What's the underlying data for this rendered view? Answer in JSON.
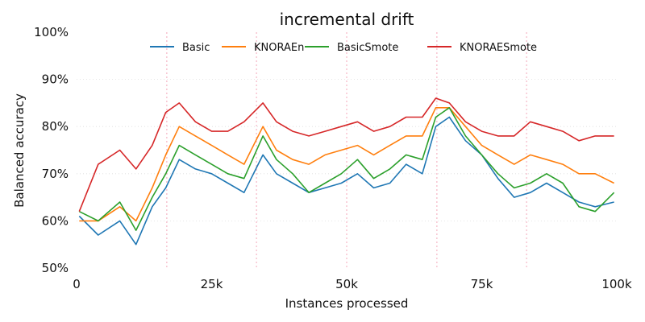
{
  "chart_data": {
    "type": "line",
    "title": "incremental drift",
    "xlabel": "Instances processed",
    "ylabel": "Balanced accuracy",
    "xlim": [
      0,
      100000
    ],
    "ylim": [
      0.5,
      1.0
    ],
    "x_ticks": [
      0,
      25000,
      50000,
      75000,
      100000
    ],
    "x_tick_labels": [
      "0",
      "25k",
      "50k",
      "75k",
      "100k"
    ],
    "y_ticks": [
      0.5,
      0.6,
      0.7,
      0.8,
      0.9,
      1.0
    ],
    "y_tick_labels": [
      "50%",
      "60%",
      "70%",
      "80%",
      "90%",
      "100%"
    ],
    "grid": "horizontal dotted",
    "legend_position": "top-center",
    "drift_markers": [
      16700,
      33300,
      50000,
      66700,
      83300
    ],
    "drift_marker_color": "#f4a7b9",
    "x": [
      500,
      4000,
      8000,
      11000,
      14000,
      16500,
      19000,
      22000,
      25000,
      28000,
      31000,
      34500,
      37000,
      40000,
      43000,
      46000,
      49000,
      52000,
      55000,
      58000,
      61000,
      64000,
      66500,
      69000,
      72000,
      75000,
      78000,
      81000,
      84000,
      87000,
      90000,
      93000,
      96000,
      99500
    ],
    "series": [
      {
        "name": "Basic",
        "color": "#1f77b4",
        "values": [
          0.61,
          0.57,
          0.6,
          0.55,
          0.63,
          0.67,
          0.73,
          0.71,
          0.7,
          0.68,
          0.66,
          0.74,
          0.7,
          0.68,
          0.66,
          0.67,
          0.68,
          0.7,
          0.67,
          0.68,
          0.72,
          0.7,
          0.8,
          0.82,
          0.77,
          0.74,
          0.69,
          0.65,
          0.66,
          0.68,
          0.66,
          0.64,
          0.63,
          0.64
        ]
      },
      {
        "name": "KNORAEn",
        "color": "#ff7f0e",
        "values": [
          0.6,
          0.6,
          0.63,
          0.6,
          0.67,
          0.74,
          0.8,
          0.78,
          0.76,
          0.74,
          0.72,
          0.8,
          0.75,
          0.73,
          0.72,
          0.74,
          0.75,
          0.76,
          0.74,
          0.76,
          0.78,
          0.78,
          0.84,
          0.84,
          0.8,
          0.76,
          0.74,
          0.72,
          0.74,
          0.73,
          0.72,
          0.7,
          0.7,
          0.68
        ]
      },
      {
        "name": "BasicSmote",
        "color": "#2ca02c",
        "values": [
          0.62,
          0.6,
          0.64,
          0.58,
          0.65,
          0.7,
          0.76,
          0.74,
          0.72,
          0.7,
          0.69,
          0.78,
          0.73,
          0.7,
          0.66,
          0.68,
          0.7,
          0.73,
          0.69,
          0.71,
          0.74,
          0.73,
          0.82,
          0.84,
          0.78,
          0.74,
          0.7,
          0.67,
          0.68,
          0.7,
          0.68,
          0.63,
          0.62,
          0.66
        ]
      },
      {
        "name": "KNORAESmote",
        "color": "#d62728",
        "values": [
          0.62,
          0.72,
          0.75,
          0.71,
          0.76,
          0.83,
          0.85,
          0.81,
          0.79,
          0.79,
          0.81,
          0.85,
          0.81,
          0.79,
          0.78,
          0.79,
          0.8,
          0.81,
          0.79,
          0.8,
          0.82,
          0.82,
          0.86,
          0.85,
          0.81,
          0.79,
          0.78,
          0.78,
          0.81,
          0.8,
          0.79,
          0.77,
          0.78,
          0.78
        ]
      }
    ]
  }
}
